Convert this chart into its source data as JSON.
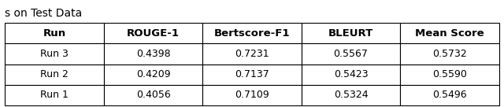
{
  "title": "s on Test Data",
  "columns": [
    "Run",
    "ROUGE-1",
    "Bertscore-F1",
    "BLEURT",
    "Mean Score"
  ],
  "rows": [
    [
      "Run 3",
      "0.4398",
      "0.7231",
      "0.5567",
      "0.5732"
    ],
    [
      "Run 2",
      "0.4209",
      "0.7137",
      "0.5423",
      "0.5590"
    ],
    [
      "Run 1",
      "0.4056",
      "0.7109",
      "0.5324",
      "0.5496"
    ]
  ],
  "header_fontsize": 9.5,
  "cell_fontsize": 9,
  "title_fontsize": 10,
  "background_color": "#ffffff",
  "header_bg_color": "#ffffff",
  "cell_bg_color": "#ffffff",
  "edge_color": "#000000",
  "text_color": "#000000",
  "figsize": [
    6.4,
    1.36
  ],
  "dpi": 100
}
